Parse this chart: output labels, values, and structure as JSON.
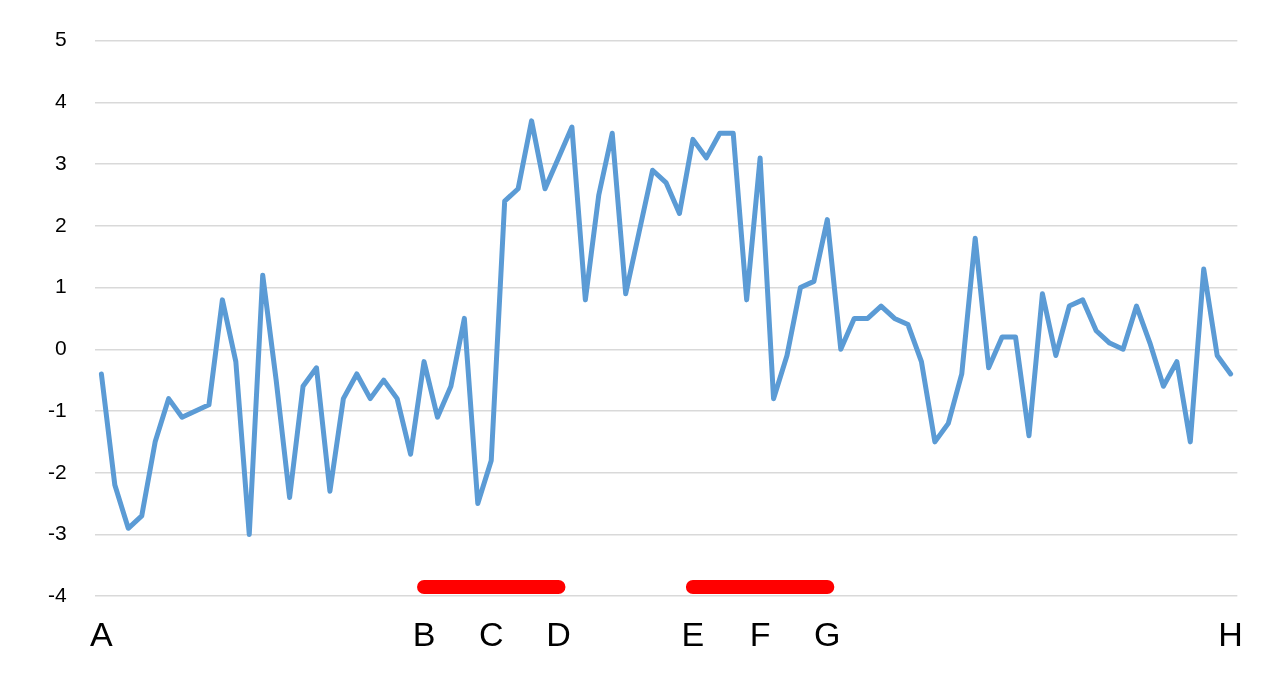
{
  "chart_data": {
    "type": "line",
    "categories": [
      "A",
      null,
      null,
      null,
      null,
      null,
      null,
      null,
      null,
      null,
      null,
      null,
      null,
      null,
      null,
      null,
      null,
      null,
      null,
      null,
      null,
      null,
      null,
      null,
      "B",
      null,
      null,
      null,
      null,
      "C",
      null,
      null,
      null,
      null,
      "D",
      null,
      null,
      null,
      null,
      null,
      null,
      null,
      null,
      null,
      "E",
      null,
      null,
      null,
      null,
      "F",
      null,
      null,
      null,
      null,
      "G",
      null,
      null,
      null,
      null,
      null,
      null,
      null,
      null,
      null,
      null,
      null,
      null,
      null,
      null,
      null,
      null,
      null,
      null,
      null,
      null,
      null,
      null,
      null,
      null,
      null,
      null,
      null,
      null,
      null,
      "H"
    ],
    "series": [
      {
        "color": "#5b9bd5",
        "values": [
          -0.4,
          -2.2,
          -2.9,
          -2.7,
          -1.5,
          -0.8,
          -1.1,
          -1.0,
          -0.9,
          0.8,
          -0.2,
          -3.0,
          1.2,
          -0.5,
          -2.4,
          -0.6,
          -0.3,
          -2.3,
          -0.8,
          -0.4,
          -0.8,
          -0.5,
          -0.8,
          -1.7,
          -0.2,
          -1.1,
          -0.6,
          0.5,
          -2.5,
          -1.8,
          2.4,
          2.6,
          3.7,
          2.6,
          3.1,
          3.6,
          0.8,
          2.5,
          3.5,
          0.9,
          1.9,
          2.9,
          2.7,
          2.2,
          3.4,
          3.1,
          3.5,
          3.5,
          0.8,
          3.1,
          -0.8,
          -0.1,
          1.0,
          1.1,
          2.1,
          0.0,
          0.5,
          0.5,
          0.7,
          0.5,
          0.4,
          -0.2,
          -1.5,
          -1.2,
          -0.4,
          1.8,
          -0.3,
          0.2,
          0.2,
          -1.4,
          0.9,
          -0.1,
          0.7,
          0.8,
          0.3,
          0.1,
          0.0,
          0.7,
          0.1,
          -0.6,
          -0.2,
          -1.5,
          1.3,
          -0.1,
          -0.4
        ]
      },
      {
        "color": "#ff0000",
        "values": [
          null,
          null,
          null,
          null,
          null,
          null,
          null,
          null,
          null,
          null,
          null,
          null,
          null,
          null,
          null,
          null,
          null,
          null,
          null,
          null,
          null,
          null,
          null,
          null,
          -3.85,
          -3.85,
          -3.85,
          -3.85,
          -3.85,
          -3.85,
          -3.85,
          -3.85,
          -3.85,
          -3.85,
          -3.85,
          null,
          null,
          null,
          null,
          null,
          null,
          null,
          null,
          null,
          -3.85,
          -3.85,
          -3.85,
          -3.85,
          -3.85,
          -3.85,
          -3.85,
          -3.85,
          -3.85,
          -3.85,
          -3.85,
          null,
          null,
          null,
          null,
          null,
          null,
          null,
          null,
          null,
          null,
          null,
          null,
          null,
          null,
          null,
          null,
          null,
          null,
          null,
          null,
          null,
          null,
          null,
          null,
          null,
          null,
          null,
          null,
          null,
          null
        ]
      }
    ],
    "ylim": [
      -4,
      5
    ],
    "yticks": [
      -4,
      -3,
      -2,
      -1,
      0,
      1,
      2,
      3,
      4,
      5
    ],
    "grid": "y",
    "legend": false,
    "marker": "none"
  }
}
